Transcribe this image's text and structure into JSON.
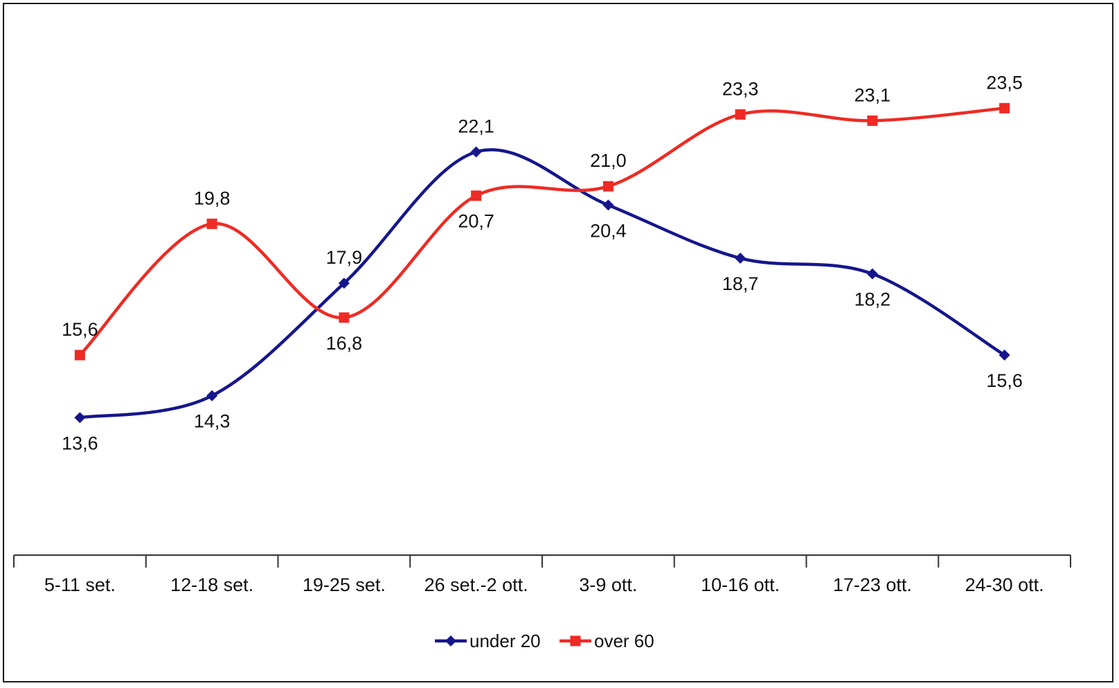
{
  "chart_data": {
    "type": "line",
    "smooth": true,
    "categories": [
      "5-11 set.",
      "12-18 set.",
      "19-25 set.",
      "26 set.-2 ott.",
      "3-9 ott.",
      "10-16 ott.",
      "17-23 ott.",
      "24-30 ott."
    ],
    "series": [
      {
        "name": "under 20",
        "color": "#16168c",
        "marker": "diamond",
        "values": [
          13.6,
          14.3,
          17.9,
          22.1,
          20.4,
          18.7,
          18.2,
          15.6
        ],
        "labels": [
          "13,6",
          "14,3",
          "17,9",
          "22,1",
          "20,4",
          "18,7",
          "18,2",
          "15,6"
        ]
      },
      {
        "name": "over 60",
        "color": "#ee2b24",
        "marker": "square",
        "values": [
          15.6,
          19.8,
          16.8,
          20.7,
          21.0,
          23.3,
          23.1,
          23.5
        ],
        "labels": [
          "15,6",
          "19,8",
          "16,8",
          "20,7",
          "21,0",
          "23,3",
          "23,1",
          "23,5"
        ]
      }
    ],
    "ylim": [
      9.2,
      25.5
    ],
    "grid": false,
    "y_axis_visible": false,
    "legend_position": "bottom-center",
    "title": "",
    "xlabel": "",
    "ylabel": ""
  }
}
